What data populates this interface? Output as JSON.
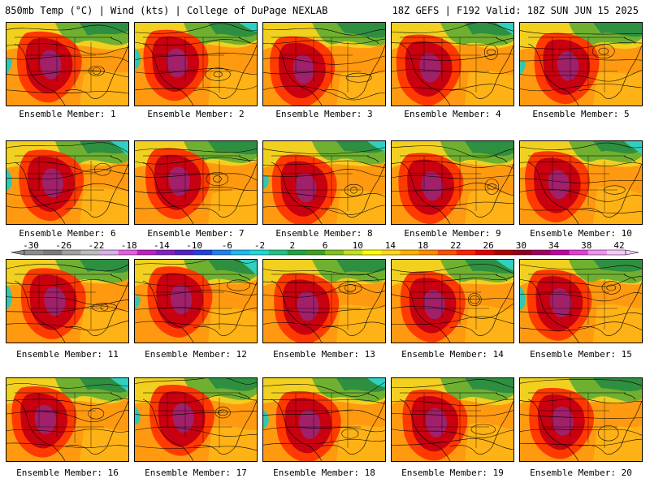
{
  "header": {
    "left": "850mb Temp (°C) | Wind (kts) | College of DuPage NEXLAB",
    "right": "18Z GEFS | F192 Valid: 18Z SUN JUN 15 2025"
  },
  "members": [
    "Ensemble Member: 1",
    "Ensemble Member: 2",
    "Ensemble Member: 3",
    "Ensemble Member: 4",
    "Ensemble Member: 5",
    "Ensemble Member: 6",
    "Ensemble Member: 7",
    "Ensemble Member: 8",
    "Ensemble Member: 9",
    "Ensemble Member: 10",
    "Ensemble Member: 11",
    "Ensemble Member: 12",
    "Ensemble Member: 13",
    "Ensemble Member: 14",
    "Ensemble Member: 15",
    "Ensemble Member: 16",
    "Ensemble Member: 17",
    "Ensemble Member: 18",
    "Ensemble Member: 19",
    "Ensemble Member: 20"
  ],
  "colorbar": {
    "tick_labels": [
      "-30",
      "-26",
      "-22",
      "-18",
      "-14",
      "-10",
      "-6",
      "-2",
      "2",
      "6",
      "10",
      "14",
      "18",
      "22",
      "26",
      "30",
      "34",
      "38",
      "42"
    ],
    "colors": [
      "#8c8c8c",
      "#7a7a7a",
      "#a0a0a0",
      "#bcbcbc",
      "#d8b0e8",
      "#e060e0",
      "#c020c0",
      "#8020c0",
      "#5020c8",
      "#2040e0",
      "#2080f0",
      "#20b8f0",
      "#20d8d8",
      "#20c080",
      "#20a040",
      "#40a020",
      "#80c020",
      "#c0e020",
      "#ffff00",
      "#ffd820",
      "#ffb000",
      "#ff8c00",
      "#ff5000",
      "#ff2000",
      "#e00000",
      "#b00000",
      "#900020",
      "#a00060",
      "#c000a0",
      "#e040d0",
      "#f090f0",
      "#f8c8f8"
    ]
  },
  "colors": {
    "warm_core": "#c80010",
    "hot_center": "#a0206a",
    "background_warm": "#ff9a10",
    "cool_north": "#50a030",
    "cold_ne": "#30d0c0"
  }
}
